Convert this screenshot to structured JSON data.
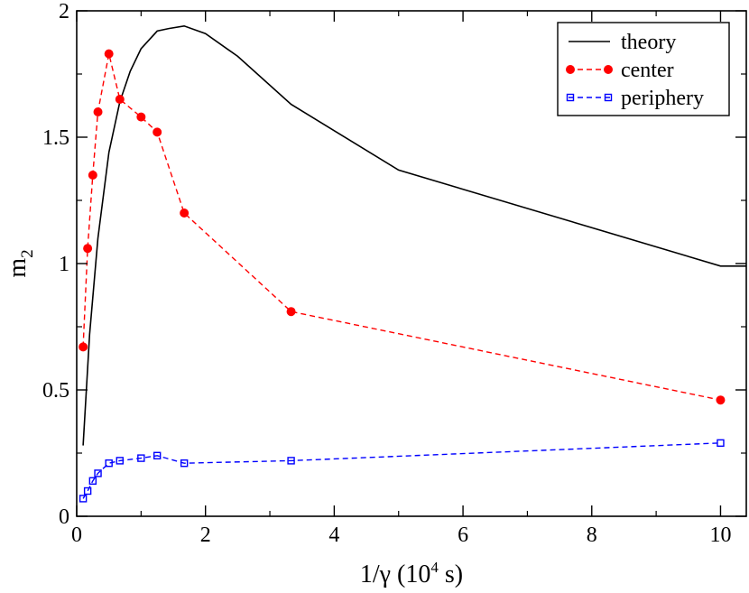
{
  "chart_data": {
    "type": "line",
    "xlabel": {
      "main": "1/γ (10",
      "sup": "4",
      "tail": " s)"
    },
    "ylabel": {
      "main": "m",
      "sub": "2"
    },
    "xlim": [
      0,
      10.4
    ],
    "ylim": [
      0,
      2
    ],
    "xticks": [
      0,
      2,
      4,
      6,
      8,
      10
    ],
    "yticks": [
      0,
      0.5,
      1,
      1.5,
      2
    ],
    "xtick_labels": [
      "0",
      "2",
      "4",
      "6",
      "8",
      "10"
    ],
    "ytick_labels": [
      "0",
      "0.5",
      "1",
      "1.5",
      "2"
    ],
    "legend_position": "top-right",
    "series": [
      {
        "name": "theory",
        "color": "#000000",
        "style": "solid",
        "marker": "none",
        "x": [
          0.1,
          0.2,
          0.33,
          0.5,
          0.67,
          0.83,
          1.0,
          1.25,
          1.43,
          1.67,
          2.0,
          2.5,
          3.33,
          5.0,
          10.0,
          10.4
        ],
        "y": [
          0.28,
          0.72,
          1.1,
          1.44,
          1.64,
          1.76,
          1.85,
          1.92,
          1.93,
          1.94,
          1.91,
          1.82,
          1.63,
          1.37,
          0.99,
          0.99
        ]
      },
      {
        "name": "center",
        "color": "#ff0000",
        "style": "dashed",
        "marker": "circle",
        "x": [
          0.1,
          0.17,
          0.25,
          0.33,
          0.5,
          0.67,
          1.0,
          1.25,
          1.67,
          3.33,
          10.0
        ],
        "y": [
          0.67,
          1.06,
          1.35,
          1.6,
          1.83,
          1.65,
          1.58,
          1.52,
          1.2,
          0.81,
          0.46
        ]
      },
      {
        "name": "periphery",
        "color": "#0000ff",
        "style": "dashed",
        "marker": "square",
        "x": [
          0.1,
          0.17,
          0.25,
          0.33,
          0.5,
          0.67,
          1.0,
          1.25,
          1.67,
          3.33,
          10.0
        ],
        "y": [
          0.07,
          0.1,
          0.14,
          0.17,
          0.21,
          0.22,
          0.23,
          0.24,
          0.21,
          0.22,
          0.29
        ]
      }
    ]
  }
}
